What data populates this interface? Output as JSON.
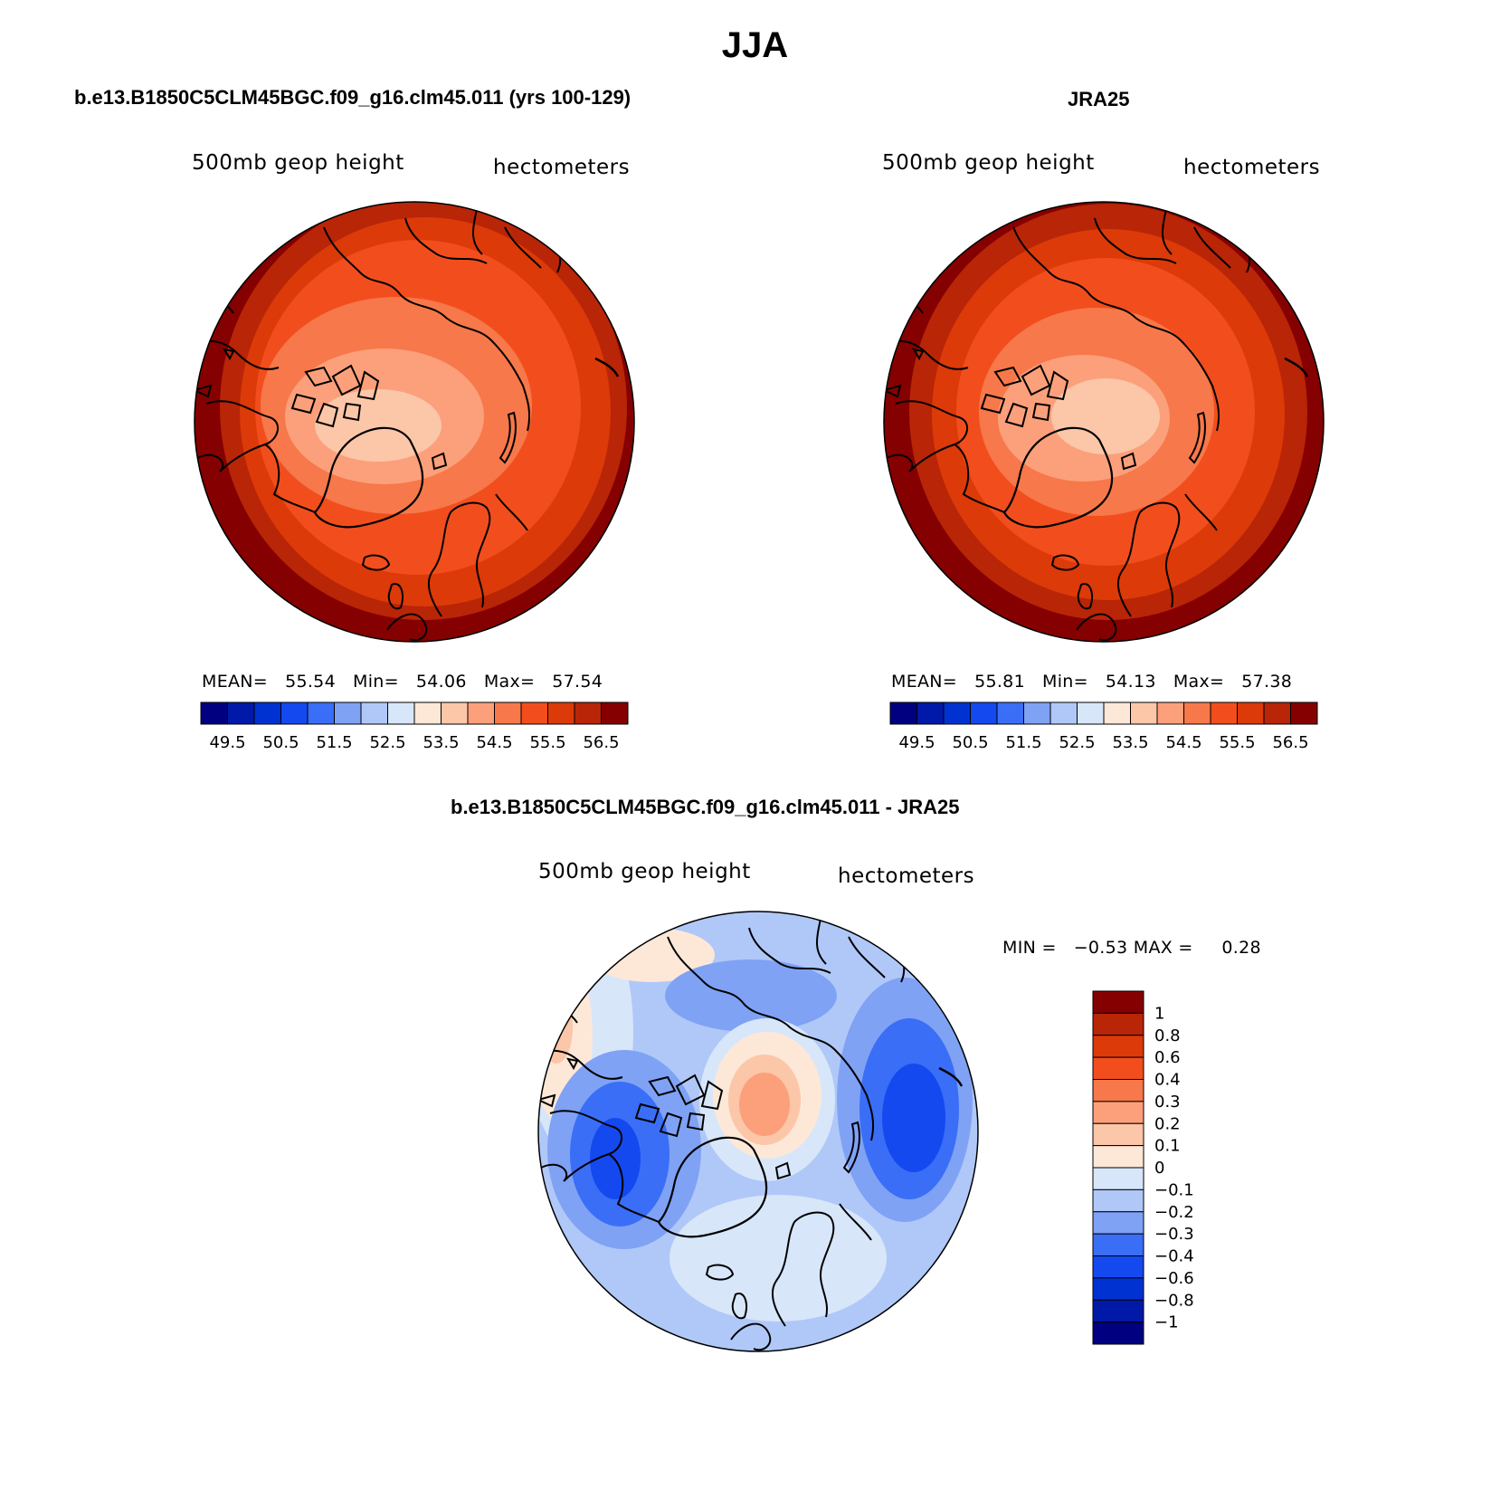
{
  "figure": {
    "title": "JJA",
    "colors": {
      "ocean_outline": "#000000",
      "coast": "#000000"
    }
  },
  "panels": {
    "model": {
      "title": "b.e13.B1850C5CLM45BGC.f09_g16.clm45.011 (yrs 100-129)",
      "variable": "500mb geop height",
      "units": "hectometers",
      "stats": {
        "mean_label": "MEAN=",
        "mean": "55.54",
        "min_label": "Min=",
        "min": "54.06",
        "max_label": "Max=",
        "max": "57.54"
      }
    },
    "obs": {
      "title": "JRA25",
      "variable": "500mb geop height",
      "units": "hectometers",
      "stats": {
        "mean_label": "MEAN=",
        "mean": "55.81",
        "min_label": "Min=",
        "min": "54.13",
        "max_label": "Max=",
        "max": "57.38"
      }
    },
    "diff": {
      "title": "b.e13.B1850C5CLM45BGC.f09_g16.clm45.011 - JRA25",
      "variable": "500mb geop height",
      "units": "hectometers",
      "stats": {
        "min_label": "MIN =",
        "min": "−0.53",
        "max_label": "MAX =",
        "max": "0.28"
      }
    }
  },
  "chart_data": [
    {
      "type": "heatmap",
      "title": "b.e13.B1850C5CLM45BGC.f09_g16.clm45.011 (yrs 100-129)",
      "projection": "north polar stereographic",
      "variable": "500mb geop height",
      "units": "hectometers",
      "levels": [
        49.5,
        50,
        50.5,
        51,
        51.5,
        52,
        52.5,
        53,
        53.5,
        54,
        54.5,
        55,
        55.5,
        56,
        56.5
      ],
      "tick_labels": [
        "49.5",
        "50.5",
        "51.5",
        "52.5",
        "53.5",
        "54.5",
        "55.5",
        "56.5"
      ],
      "colors": [
        "#000080",
        "#0019a8",
        "#0032d2",
        "#1449f0",
        "#3a6ef6",
        "#7fa2f5",
        "#b0c8f8",
        "#d8e6fa",
        "#fde8d8",
        "#fcc6a8",
        "#fba07a",
        "#f7784a",
        "#f24e1d",
        "#dc3a08",
        "#b82507",
        "#850000"
      ],
      "mean": 55.54,
      "min": 54.06,
      "max": 57.54
    },
    {
      "type": "heatmap",
      "title": "JRA25",
      "projection": "north polar stereographic",
      "variable": "500mb geop height",
      "units": "hectometers",
      "levels": [
        49.5,
        50,
        50.5,
        51,
        51.5,
        52,
        52.5,
        53,
        53.5,
        54,
        54.5,
        55,
        55.5,
        56,
        56.5
      ],
      "tick_labels": [
        "49.5",
        "50.5",
        "51.5",
        "52.5",
        "53.5",
        "54.5",
        "55.5",
        "56.5"
      ],
      "colors": [
        "#000080",
        "#0019a8",
        "#0032d2",
        "#1449f0",
        "#3a6ef6",
        "#7fa2f5",
        "#b0c8f8",
        "#d8e6fa",
        "#fde8d8",
        "#fcc6a8",
        "#fba07a",
        "#f7784a",
        "#f24e1d",
        "#dc3a08",
        "#b82507",
        "#850000"
      ],
      "mean": 55.81,
      "min": 54.13,
      "max": 57.38
    },
    {
      "type": "heatmap",
      "title": "b.e13.B1850C5CLM45BGC.f09_g16.clm45.011 - JRA25",
      "projection": "north polar stereographic",
      "variable": "500mb geop height",
      "units": "hectometers",
      "levels": [
        -1,
        -0.8,
        -0.6,
        -0.4,
        -0.3,
        -0.2,
        -0.1,
        0,
        0.1,
        0.2,
        0.3,
        0.4,
        0.6,
        0.8,
        1
      ],
      "tick_labels": [
        "1",
        "0.8",
        "0.6",
        "0.4",
        "0.3",
        "0.2",
        "0.1",
        "0",
        "−0.1",
        "−0.2",
        "−0.3",
        "−0.4",
        "−0.6",
        "−0.8",
        "−1"
      ],
      "colors": [
        "#850000",
        "#b82507",
        "#dc3a08",
        "#f24e1d",
        "#f7784a",
        "#fba07a",
        "#fcc6a8",
        "#fde8d8",
        "#d8e6fa",
        "#b0c8f8",
        "#7fa2f5",
        "#3a6ef6",
        "#1449f0",
        "#0032d2",
        "#0019a8",
        "#000080"
      ],
      "min": -0.53,
      "max": 0.28
    }
  ]
}
